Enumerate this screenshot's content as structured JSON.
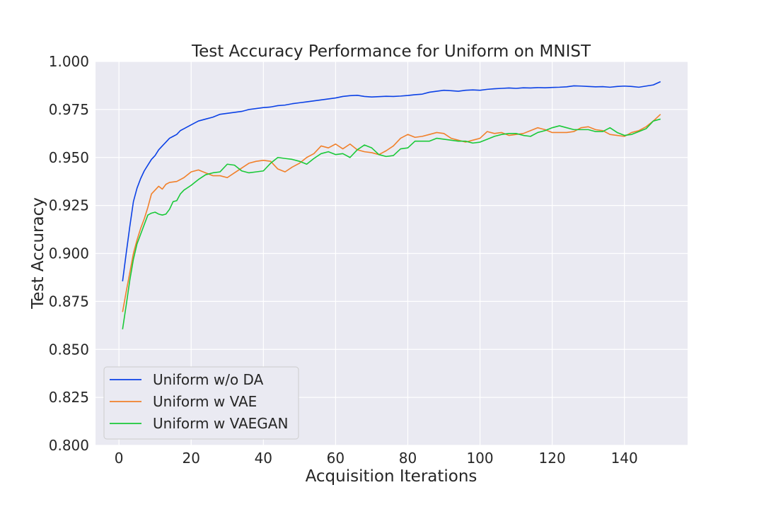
{
  "chart_data": {
    "type": "line",
    "title": "Test Accuracy Performance for Uniform on MNIST",
    "xlabel": "Acquisition Iterations",
    "ylabel": "Test Accuracy",
    "xlim": [
      -6.5,
      157.5
    ],
    "ylim": [
      0.8,
      1.0
    ],
    "xticks": [
      0,
      20,
      40,
      60,
      80,
      100,
      120,
      140
    ],
    "xtick_labels": [
      "0",
      "20",
      "40",
      "60",
      "80",
      "100",
      "120",
      "140"
    ],
    "yticks": [
      0.8,
      0.825,
      0.85,
      0.875,
      0.9,
      0.925,
      0.95,
      0.975,
      1.0
    ],
    "ytick_labels": [
      "0.800",
      "0.825",
      "0.850",
      "0.875",
      "0.900",
      "0.925",
      "0.950",
      "0.975",
      "1.000"
    ],
    "grid": true,
    "legend_position": "lower-left",
    "series": [
      {
        "name": "Uniform w/o DA",
        "color": "#0b41e6",
        "points": [
          [
            1,
            0.8855
          ],
          [
            2,
            0.9
          ],
          [
            3,
            0.914
          ],
          [
            4,
            0.927
          ],
          [
            5,
            0.934
          ],
          [
            6,
            0.939
          ],
          [
            7,
            0.943
          ],
          [
            8,
            0.946
          ],
          [
            9,
            0.949
          ],
          [
            10,
            0.951
          ],
          [
            11,
            0.954
          ],
          [
            12,
            0.956
          ],
          [
            13,
            0.958
          ],
          [
            14,
            0.96
          ],
          [
            15,
            0.961
          ],
          [
            16,
            0.962
          ],
          [
            17,
            0.964
          ],
          [
            18,
            0.965
          ],
          [
            19,
            0.966
          ],
          [
            20,
            0.967
          ],
          [
            22,
            0.969
          ],
          [
            24,
            0.97
          ],
          [
            26,
            0.971
          ],
          [
            28,
            0.9725
          ],
          [
            30,
            0.973
          ],
          [
            32,
            0.9735
          ],
          [
            34,
            0.974
          ],
          [
            36,
            0.975
          ],
          [
            38,
            0.9755
          ],
          [
            40,
            0.976
          ],
          [
            42,
            0.9763
          ],
          [
            44,
            0.977
          ],
          [
            46,
            0.9773
          ],
          [
            48,
            0.978
          ],
          [
            50,
            0.9785
          ],
          [
            52,
            0.979
          ],
          [
            54,
            0.9795
          ],
          [
            56,
            0.98
          ],
          [
            58,
            0.9805
          ],
          [
            60,
            0.981
          ],
          [
            62,
            0.9818
          ],
          [
            64,
            0.9822
          ],
          [
            66,
            0.9824
          ],
          [
            68,
            0.9818
          ],
          [
            70,
            0.9815
          ],
          [
            72,
            0.9817
          ],
          [
            74,
            0.9819
          ],
          [
            76,
            0.9818
          ],
          [
            78,
            0.982
          ],
          [
            80,
            0.9823
          ],
          [
            82,
            0.9827
          ],
          [
            84,
            0.983
          ],
          [
            86,
            0.984
          ],
          [
            88,
            0.9845
          ],
          [
            90,
            0.985
          ],
          [
            92,
            0.9848
          ],
          [
            94,
            0.9845
          ],
          [
            96,
            0.985
          ],
          [
            98,
            0.9852
          ],
          [
            100,
            0.985
          ],
          [
            102,
            0.9855
          ],
          [
            104,
            0.9858
          ],
          [
            106,
            0.986
          ],
          [
            108,
            0.9862
          ],
          [
            110,
            0.986
          ],
          [
            112,
            0.9863
          ],
          [
            114,
            0.9862
          ],
          [
            116,
            0.9864
          ],
          [
            118,
            0.9863
          ],
          [
            120,
            0.9865
          ],
          [
            122,
            0.9866
          ],
          [
            124,
            0.9868
          ],
          [
            126,
            0.9873
          ],
          [
            128,
            0.9872
          ],
          [
            130,
            0.987
          ],
          [
            132,
            0.9868
          ],
          [
            134,
            0.9869
          ],
          [
            136,
            0.9866
          ],
          [
            138,
            0.987
          ],
          [
            140,
            0.9872
          ],
          [
            142,
            0.987
          ],
          [
            144,
            0.9866
          ],
          [
            146,
            0.9872
          ],
          [
            148,
            0.9878
          ],
          [
            150,
            0.9895
          ]
        ]
      },
      {
        "name": "Uniform w VAE",
        "color": "#f1802a",
        "points": [
          [
            1,
            0.8695
          ],
          [
            2,
            0.88
          ],
          [
            3,
            0.89
          ],
          [
            4,
            0.9
          ],
          [
            5,
            0.907
          ],
          [
            6,
            0.913
          ],
          [
            7,
            0.918
          ],
          [
            8,
            0.924
          ],
          [
            9,
            0.931
          ],
          [
            10,
            0.933
          ],
          [
            11,
            0.935
          ],
          [
            12,
            0.9335
          ],
          [
            13,
            0.936
          ],
          [
            14,
            0.937
          ],
          [
            16,
            0.9375
          ],
          [
            18,
            0.9395
          ],
          [
            20,
            0.9425
          ],
          [
            22,
            0.9435
          ],
          [
            24,
            0.942
          ],
          [
            26,
            0.9405
          ],
          [
            28,
            0.9405
          ],
          [
            30,
            0.9395
          ],
          [
            32,
            0.942
          ],
          [
            34,
            0.9445
          ],
          [
            36,
            0.947
          ],
          [
            38,
            0.948
          ],
          [
            40,
            0.9485
          ],
          [
            42,
            0.948
          ],
          [
            44,
            0.944
          ],
          [
            46,
            0.9425
          ],
          [
            48,
            0.945
          ],
          [
            50,
            0.947
          ],
          [
            52,
            0.95
          ],
          [
            54,
            0.952
          ],
          [
            56,
            0.956
          ],
          [
            58,
            0.955
          ],
          [
            60,
            0.957
          ],
          [
            62,
            0.9545
          ],
          [
            64,
            0.957
          ],
          [
            66,
            0.954
          ],
          [
            68,
            0.953
          ],
          [
            70,
            0.9525
          ],
          [
            72,
            0.9515
          ],
          [
            74,
            0.9535
          ],
          [
            76,
            0.956
          ],
          [
            78,
            0.96
          ],
          [
            80,
            0.962
          ],
          [
            82,
            0.9605
          ],
          [
            84,
            0.961
          ],
          [
            86,
            0.962
          ],
          [
            88,
            0.963
          ],
          [
            90,
            0.9625
          ],
          [
            92,
            0.96
          ],
          [
            94,
            0.959
          ],
          [
            96,
            0.958
          ],
          [
            98,
            0.959
          ],
          [
            100,
            0.96
          ],
          [
            102,
            0.9635
          ],
          [
            104,
            0.9625
          ],
          [
            106,
            0.963
          ],
          [
            108,
            0.9615
          ],
          [
            110,
            0.962
          ],
          [
            112,
            0.9625
          ],
          [
            114,
            0.964
          ],
          [
            116,
            0.9655
          ],
          [
            118,
            0.9645
          ],
          [
            120,
            0.963
          ],
          [
            122,
            0.963
          ],
          [
            124,
            0.963
          ],
          [
            126,
            0.9635
          ],
          [
            128,
            0.9655
          ],
          [
            130,
            0.966
          ],
          [
            132,
            0.9645
          ],
          [
            134,
            0.964
          ],
          [
            136,
            0.962
          ],
          [
            138,
            0.9615
          ],
          [
            140,
            0.961
          ],
          [
            142,
            0.963
          ],
          [
            144,
            0.964
          ],
          [
            146,
            0.966
          ],
          [
            148,
            0.969
          ],
          [
            150,
            0.9725
          ]
        ]
      },
      {
        "name": "Uniform w VAEGAN",
        "color": "#1ac938",
        "points": [
          [
            1,
            0.8605
          ],
          [
            2,
            0.873
          ],
          [
            3,
            0.886
          ],
          [
            4,
            0.897
          ],
          [
            5,
            0.905
          ],
          [
            6,
            0.91
          ],
          [
            7,
            0.915
          ],
          [
            8,
            0.92
          ],
          [
            9,
            0.921
          ],
          [
            10,
            0.9215
          ],
          [
            11,
            0.9205
          ],
          [
            12,
            0.92
          ],
          [
            13,
            0.9205
          ],
          [
            14,
            0.923
          ],
          [
            15,
            0.927
          ],
          [
            16,
            0.9275
          ],
          [
            17,
            0.931
          ],
          [
            18,
            0.933
          ],
          [
            20,
            0.9355
          ],
          [
            22,
            0.9385
          ],
          [
            24,
            0.941
          ],
          [
            26,
            0.942
          ],
          [
            28,
            0.9425
          ],
          [
            30,
            0.9465
          ],
          [
            32,
            0.946
          ],
          [
            34,
            0.943
          ],
          [
            36,
            0.942
          ],
          [
            38,
            0.9425
          ],
          [
            40,
            0.943
          ],
          [
            42,
            0.947
          ],
          [
            44,
            0.95
          ],
          [
            46,
            0.9495
          ],
          [
            48,
            0.949
          ],
          [
            50,
            0.948
          ],
          [
            52,
            0.9465
          ],
          [
            54,
            0.9495
          ],
          [
            56,
            0.952
          ],
          [
            58,
            0.953
          ],
          [
            60,
            0.9515
          ],
          [
            62,
            0.952
          ],
          [
            64,
            0.95
          ],
          [
            66,
            0.954
          ],
          [
            68,
            0.9565
          ],
          [
            70,
            0.955
          ],
          [
            72,
            0.9515
          ],
          [
            74,
            0.9505
          ],
          [
            76,
            0.951
          ],
          [
            78,
            0.9545
          ],
          [
            80,
            0.955
          ],
          [
            82,
            0.9585
          ],
          [
            84,
            0.9585
          ],
          [
            86,
            0.9585
          ],
          [
            88,
            0.96
          ],
          [
            90,
            0.9595
          ],
          [
            92,
            0.959
          ],
          [
            94,
            0.9585
          ],
          [
            96,
            0.9585
          ],
          [
            98,
            0.9575
          ],
          [
            100,
            0.958
          ],
          [
            102,
            0.9595
          ],
          [
            104,
            0.961
          ],
          [
            106,
            0.962
          ],
          [
            108,
            0.9625
          ],
          [
            110,
            0.9625
          ],
          [
            112,
            0.9615
          ],
          [
            114,
            0.961
          ],
          [
            116,
            0.963
          ],
          [
            118,
            0.964
          ],
          [
            120,
            0.9655
          ],
          [
            122,
            0.9665
          ],
          [
            124,
            0.9655
          ],
          [
            126,
            0.9645
          ],
          [
            128,
            0.9645
          ],
          [
            130,
            0.9645
          ],
          [
            132,
            0.9635
          ],
          [
            134,
            0.9635
          ],
          [
            136,
            0.9655
          ],
          [
            138,
            0.963
          ],
          [
            140,
            0.9615
          ],
          [
            142,
            0.962
          ],
          [
            144,
            0.9635
          ],
          [
            146,
            0.965
          ],
          [
            148,
            0.969
          ],
          [
            150,
            0.97
          ]
        ]
      }
    ]
  }
}
